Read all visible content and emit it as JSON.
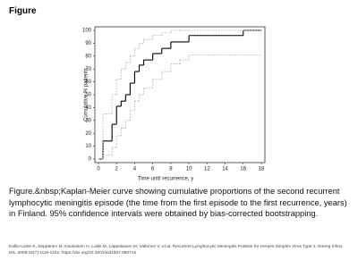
{
  "header": {
    "title": "Figure"
  },
  "chart_data": {
    "type": "step",
    "x_label": "Time until recurrence, y",
    "y_label": "Cumulative % patients",
    "x": [
      0,
      0.5,
      1.5,
      2,
      2.5,
      3,
      3.5,
      4,
      4.5,
      5,
      6,
      7,
      8,
      9,
      10,
      16,
      18
    ],
    "series": [
      {
        "color": "#000000",
        "style": "solid",
        "values": [
          0,
          14,
          27,
          41,
          45,
          50,
          59,
          68,
          73,
          77,
          82,
          86,
          91,
          91,
          96,
          100,
          100
        ]
      },
      {
        "color": "#aaaaaa",
        "style": "dotted",
        "values": [
          0,
          35,
          50,
          62,
          70,
          75,
          80,
          86,
          90,
          93,
          96,
          98,
          100,
          100,
          100,
          100,
          100
        ]
      },
      {
        "color": "#aaaaaa",
        "style": "dotted",
        "values": [
          0,
          3,
          9,
          18,
          24,
          30,
          38,
          45,
          50,
          55,
          62,
          68,
          74,
          77,
          81,
          81,
          81
        ]
      }
    ],
    "xlim": [
      0,
      18
    ],
    "xticks": [
      0,
      2,
      4,
      6,
      8,
      10,
      12,
      14,
      16,
      18
    ],
    "ylim": [
      0,
      100
    ],
    "yticks": [
      0,
      10,
      20,
      30,
      40,
      50,
      60,
      70,
      80,
      90,
      100
    ]
  },
  "caption": "Figure.&nbsp;Kaplan-Meier curve showing cumulative proportions of the second recurrent lymphocytic meningitis episode (the time from the first episode to the first recurrence, years) in Finland. 95% confidence intervals were obtained by bias-corrected bootstrapping.",
  "citation": "Kallio-Laine K, Seppänen M, Kautiainen H, Lokki M, Lappalainen M, Valtonen V, et al. Recurrent Lymphocytic Meningitis Positive for Herpes Simplex Virus Type 2. Emerg Infect Dis. 2009;15(7):1119-1122. https://doi.org/10.3201/eid1507.080716"
}
